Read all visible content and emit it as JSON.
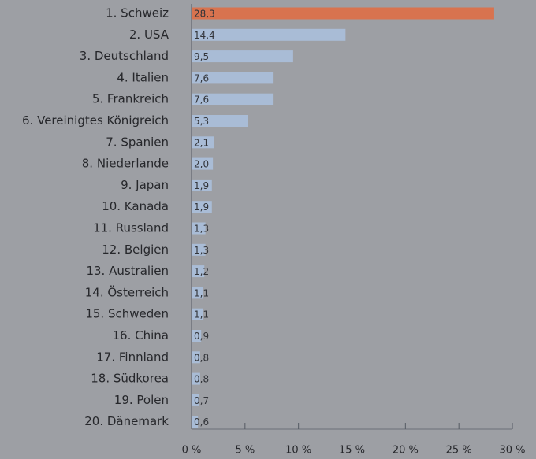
{
  "chart_data": {
    "type": "barh",
    "categories": [
      "1. Schweiz",
      "2. USA",
      "3. Deutschland",
      "4. Italien",
      "5. Frankreich",
      "6. Vereinigtes Königreich",
      "7. Spanien",
      "8. Niederlande",
      "9. Japan",
      "10. Kanada",
      "11. Russland",
      "12. Belgien",
      "13. Australien",
      "14. Österreich",
      "15. Schweden",
      "16. China",
      "17. Finnland",
      "18. Südkorea",
      "19. Polen",
      "20. Dänemark"
    ],
    "values": [
      28.3,
      14.4,
      9.5,
      7.6,
      7.6,
      5.3,
      2.1,
      2.0,
      1.9,
      1.9,
      1.3,
      1.3,
      1.2,
      1.1,
      1.1,
      0.9,
      0.8,
      0.8,
      0.7,
      0.6
    ],
    "value_labels": [
      "28,3",
      "14,4",
      "9,5",
      "7,6",
      "7,6",
      "5,3",
      "2,1",
      "2,0",
      "1,9",
      "1,9",
      "1,3",
      "1,3",
      "1,2",
      "1,1",
      "1,1",
      "0,9",
      "0,8",
      "0,8",
      "0,7",
      "0,6"
    ],
    "colors": [
      "#d8734f",
      "#a9bcd6",
      "#a9bcd6",
      "#a9bcd6",
      "#a9bcd6",
      "#a9bcd6",
      "#a9bcd6",
      "#a9bcd6",
      "#a9bcd6",
      "#a9bcd6",
      "#a9bcd6",
      "#a9bcd6",
      "#a9bcd6",
      "#a9bcd6",
      "#a9bcd6",
      "#a9bcd6",
      "#a9bcd6",
      "#a9bcd6",
      "#a9bcd6",
      "#a9bcd6"
    ],
    "xlim": [
      0,
      30
    ],
    "xticks": [
      {
        "value": 0,
        "label": "0 %"
      },
      {
        "value": 5,
        "label": "5 %"
      },
      {
        "value": 10,
        "label": "10 %"
      },
      {
        "value": 15,
        "label": "15 %"
      },
      {
        "value": 20,
        "label": "20 %"
      },
      {
        "value": 25,
        "label": "25 %"
      },
      {
        "value": 30,
        "label": "30 %"
      }
    ]
  }
}
